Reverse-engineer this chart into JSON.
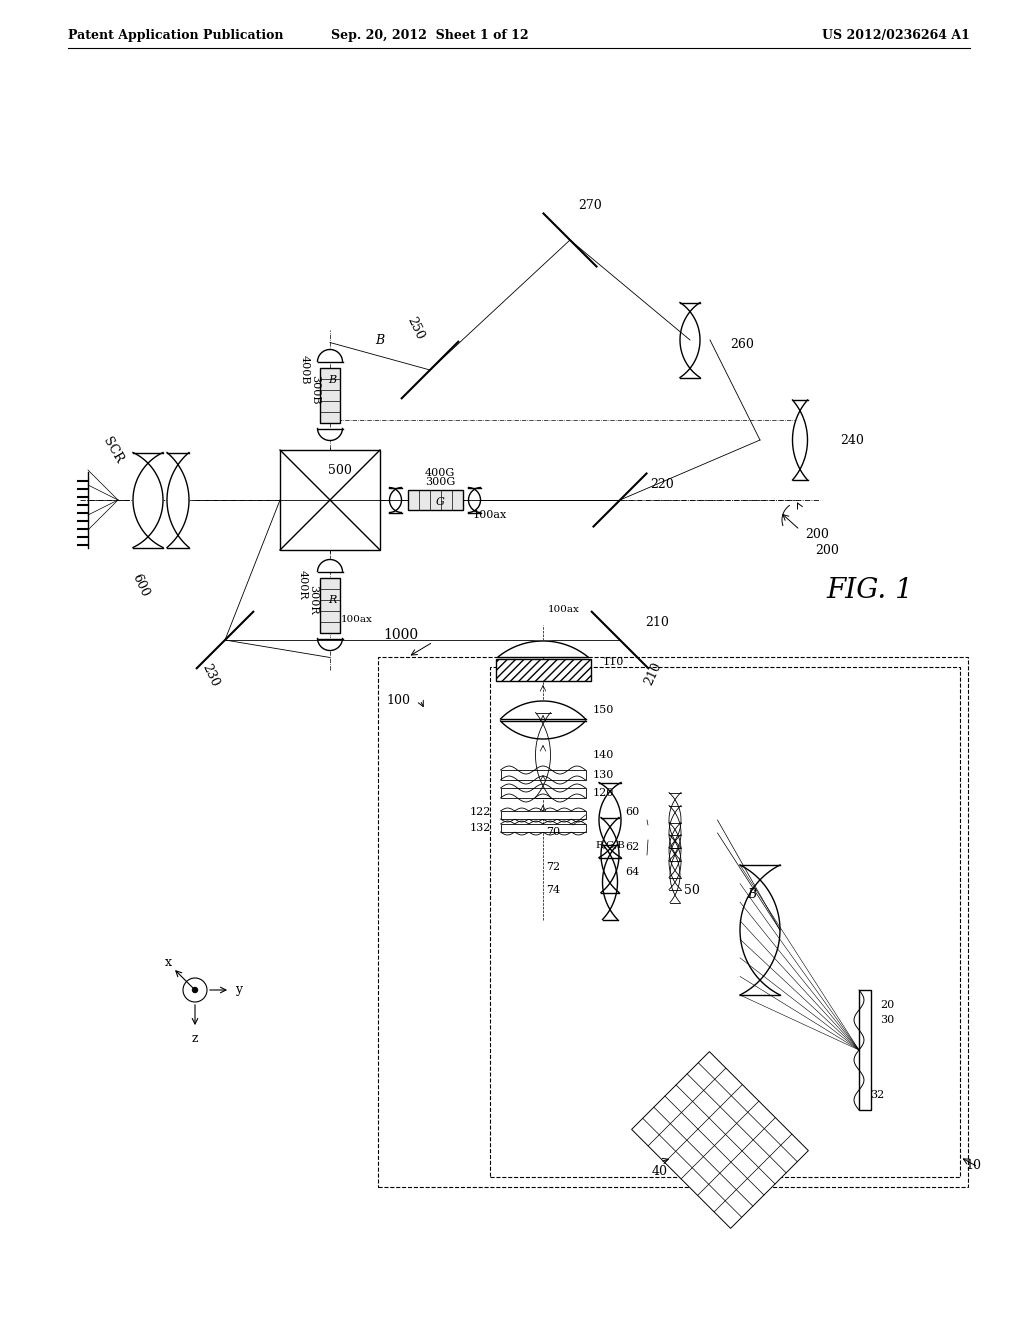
{
  "bg_color": "#ffffff",
  "header_left": "Patent Application Publication",
  "header_mid": "Sep. 20, 2012  Sheet 1 of 12",
  "header_right": "US 2012/0236264 A1",
  "fig_label": "FIG. 1"
}
